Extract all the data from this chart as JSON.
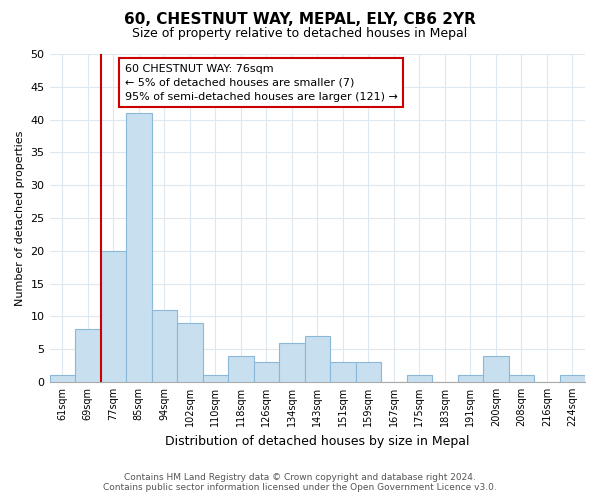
{
  "title": "60, CHESTNUT WAY, MEPAL, ELY, CB6 2YR",
  "subtitle": "Size of property relative to detached houses in Mepal",
  "xlabel": "Distribution of detached houses by size in Mepal",
  "ylabel": "Number of detached properties",
  "bin_labels": [
    "61sqm",
    "69sqm",
    "77sqm",
    "85sqm",
    "94sqm",
    "102sqm",
    "110sqm",
    "118sqm",
    "126sqm",
    "134sqm",
    "143sqm",
    "151sqm",
    "159sqm",
    "167sqm",
    "175sqm",
    "183sqm",
    "191sqm",
    "200sqm",
    "208sqm",
    "216sqm",
    "224sqm"
  ],
  "bar_values": [
    1,
    8,
    20,
    41,
    11,
    9,
    1,
    4,
    3,
    6,
    7,
    3,
    3,
    0,
    1,
    0,
    1,
    4,
    1,
    0,
    1
  ],
  "bar_color": "#c8dff0",
  "bar_edge_color": "#8ab8d8",
  "vline_x_index": 2.0,
  "vline_color": "#cc0000",
  "annotation_text_line1": "60 CHESTNUT WAY: 76sqm",
  "annotation_text_line2": "← 5% of detached houses are smaller (7)",
  "annotation_text_line3": "95% of semi-detached houses are larger (121) →",
  "ylim": [
    0,
    50
  ],
  "yticks": [
    0,
    5,
    10,
    15,
    20,
    25,
    30,
    35,
    40,
    45,
    50
  ],
  "footer_line1": "Contains HM Land Registry data © Crown copyright and database right 2024.",
  "footer_line2": "Contains public sector information licensed under the Open Government Licence v3.0.",
  "bg_color": "#ffffff",
  "plot_bg_color": "#ffffff",
  "grid_color": "#dde8f0"
}
